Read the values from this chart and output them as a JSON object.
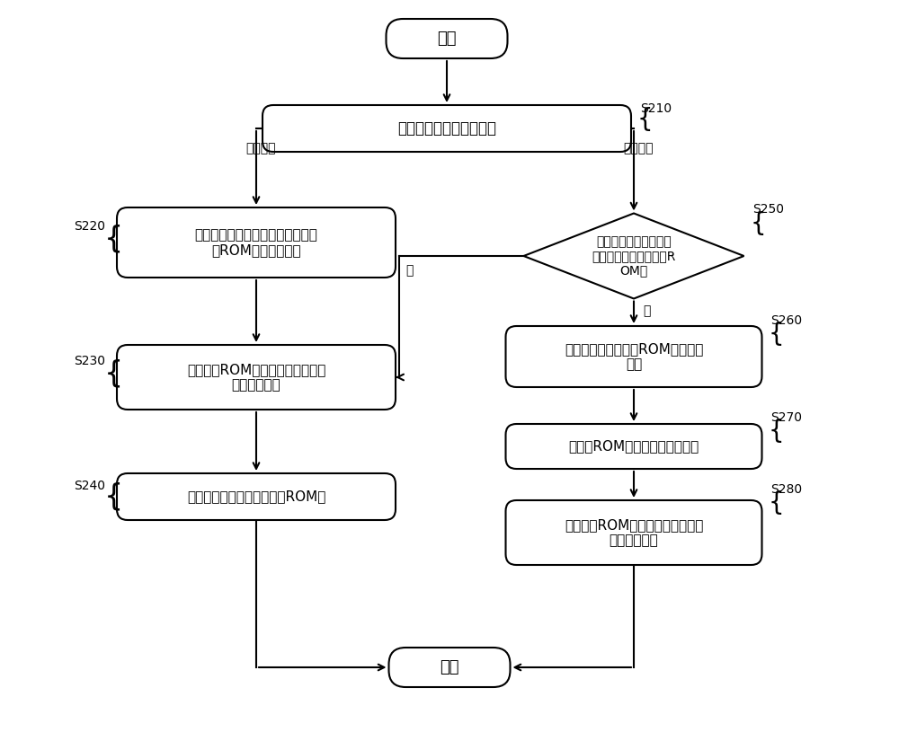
{
  "bg_color": "#ffffff",
  "line_color": "#000000",
  "box_fill": "#ffffff",
  "text_color": "#000000",
  "start_text": "开始",
  "end_text": "结束",
  "s210_label": "S210",
  "s210_text": "确定用户选择的操作系统",
  "s220_label": "S220",
  "s220_text": "从服务器侧下载厂商系统对应的第\n一ROM包至移动终端",
  "s230_label": "S230",
  "s230_text": "基于第一ROM包进行刷机处理，并\n重启移动终端",
  "s240_label": "S240",
  "s240_text": "删除移动终端中存储的第一ROM包",
  "s250_label": "S250",
  "s250_text": "判断移动终端中是否存\n在原生系统对应的第二R\nOM包",
  "s260_label": "S260",
  "s260_text": "从服务器侧下载第二ROM包至移动\n终端",
  "s270_label": "S270",
  "s270_text": "将第二ROM包存储在移动终端中",
  "s280_label": "S280",
  "s280_text": "基于第二ROM包进行刷机处理，并\n重启移动终端",
  "branch_left_label": "厂商系统",
  "branch_right_label": "原生系统",
  "branch_yes_label": "是",
  "branch_no_label": "否"
}
